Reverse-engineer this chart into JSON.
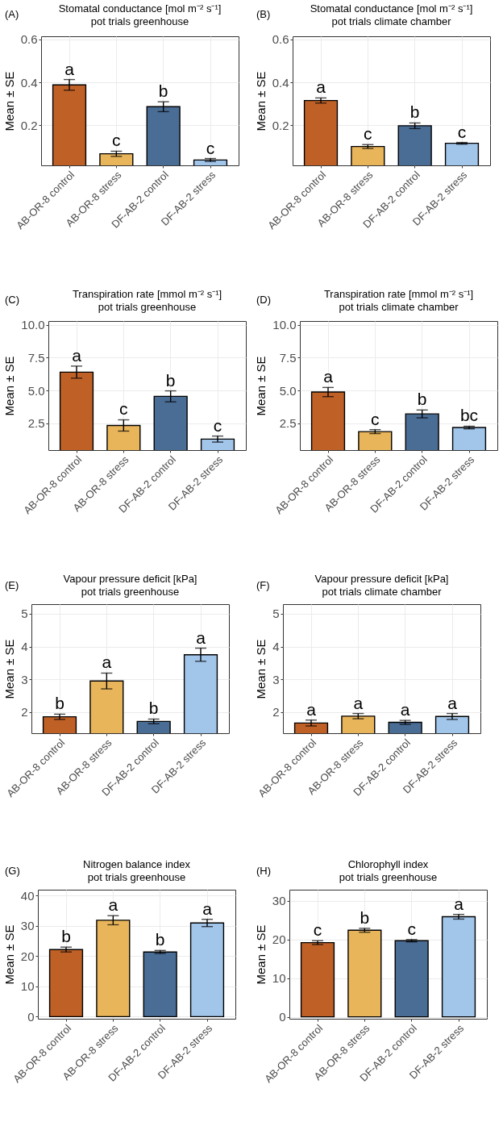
{
  "chart_data": [
    {
      "type": "bar",
      "title": "Stomatal conductance [mol m⁻² s⁻¹]",
      "subtitle": "pot trials greenhouse",
      "ylabel": "Mean ± SE",
      "categories": [
        "AB-OR-8 control",
        "AB-OR-8 stress",
        "DF-AB-2 control",
        "DF-AB-2 stress"
      ],
      "values": [
        0.388,
        0.066,
        0.286,
        0.037
      ],
      "errors": [
        0.025,
        0.012,
        0.023,
        0.007
      ],
      "colors": [
        "#bf6127",
        "#e8b55a",
        "#4a6d95",
        "#a2c5ea"
      ],
      "ylim": [
        0.012,
        0.615
      ],
      "yticks": [
        0.2,
        0.4,
        0.6
      ],
      "grid": true,
      "annotations": [
        "(A)",
        {
          "text": "a",
          "x": "AB-OR-8 control",
          "y": 0.413
        },
        {
          "text": "c",
          "x": "AB-OR-8 stress",
          "y": 0.078
        },
        {
          "text": "b",
          "x": "DF-AB-2 control",
          "y": 0.309
        },
        {
          "text": "c",
          "x": "DF-AB-2 stress",
          "y": 0.044
        }
      ]
    },
    {
      "type": "bar",
      "title": "Stomatal conductance [mol m⁻² s⁻¹]",
      "subtitle": "pot trials climate chamber",
      "ylabel": "Mean ± SE",
      "categories": [
        "AB-OR-8 control",
        "AB-OR-8 stress",
        "DF-AB-2 control",
        "DF-AB-2 stress"
      ],
      "values": [
        0.315,
        0.1,
        0.197,
        0.115
      ],
      "errors": [
        0.012,
        0.009,
        0.013,
        0.004
      ],
      "colors": [
        "#bf6127",
        "#e8b55a",
        "#4a6d95",
        "#a2c5ea"
      ],
      "ylim": [
        0.012,
        0.615
      ],
      "yticks": [
        0.2,
        0.4,
        0.6
      ],
      "grid": true,
      "annotations": [
        "(B)",
        {
          "text": "a",
          "x": "AB-OR-8 control",
          "y": 0.327
        },
        {
          "text": "c",
          "x": "AB-OR-8 stress",
          "y": 0.109
        },
        {
          "text": "b",
          "x": "DF-AB-2 control",
          "y": 0.21
        },
        {
          "text": "c",
          "x": "DF-AB-2 stress",
          "y": 0.119
        }
      ]
    },
    {
      "type": "bar",
      "title": "Transpiration rate [mmol m⁻² s⁻¹]",
      "subtitle": "pot trials greenhouse",
      "ylabel": "Mean ± SE",
      "categories": [
        "AB-OR-8 control",
        "AB-OR-8 stress",
        "DF-AB-2 control",
        "DF-AB-2 stress"
      ],
      "values": [
        6.4,
        2.33,
        4.55,
        1.29
      ],
      "errors": [
        0.46,
        0.43,
        0.42,
        0.23
      ],
      "colors": [
        "#bf6127",
        "#e8b55a",
        "#4a6d95",
        "#a2c5ea"
      ],
      "ylim": [
        0.45,
        10.3
      ],
      "yticks": [
        {
          "value": 2.5,
          "label": "2.5"
        },
        {
          "value": 5,
          "label": "5.0"
        },
        {
          "value": 7.5,
          "label": "7.5"
        },
        {
          "value": 10,
          "label": "10.0"
        }
      ],
      "grid": true,
      "annotations": [
        "(C)",
        {
          "text": "a",
          "x": "AB-OR-8 control",
          "y": 6.86
        },
        {
          "text": "c",
          "x": "AB-OR-8 stress",
          "y": 2.76
        },
        {
          "text": "b",
          "x": "DF-AB-2 control",
          "y": 4.97
        },
        {
          "text": "c",
          "x": "DF-AB-2 stress",
          "y": 1.52
        }
      ]
    },
    {
      "type": "bar",
      "title": "Transpiration rate [mmol m⁻² s⁻¹]",
      "subtitle": "pot trials climate chamber",
      "ylabel": "Mean ± SE",
      "categories": [
        "AB-OR-8 control",
        "AB-OR-8 stress",
        "DF-AB-2 control",
        "DF-AB-2 stress"
      ],
      "values": [
        4.88,
        1.86,
        3.21,
        2.17
      ],
      "errors": [
        0.35,
        0.15,
        0.3,
        0.1
      ],
      "colors": [
        "#bf6127",
        "#e8b55a",
        "#4a6d95",
        "#a2c5ea"
      ],
      "ylim": [
        0.45,
        10.3
      ],
      "yticks": [
        {
          "value": 2.5,
          "label": "2.5"
        },
        {
          "value": 5,
          "label": "5.0"
        },
        {
          "value": 7.5,
          "label": "7.5"
        },
        {
          "value": 10,
          "label": "10.0"
        }
      ],
      "grid": true,
      "annotations": [
        "(D)",
        {
          "text": "a",
          "x": "AB-OR-8 control",
          "y": 5.23
        },
        {
          "text": "c",
          "x": "AB-OR-8 stress",
          "y": 2.01
        },
        {
          "text": "b",
          "x": "DF-AB-2 control",
          "y": 3.51
        },
        {
          "text": "bc",
          "x": "DF-AB-2 stress",
          "y": 2.27
        }
      ]
    },
    {
      "type": "bar",
      "title": "Vapour pressure deficit [kPa]",
      "subtitle": "pot trials greenhouse",
      "ylabel": "Mean ± SE",
      "categories": [
        "AB-OR-8 control",
        "AB-OR-8 stress",
        "DF-AB-2 control",
        "DF-AB-2 stress"
      ],
      "values": [
        1.86,
        2.95,
        1.72,
        3.75
      ],
      "errors": [
        0.08,
        0.24,
        0.07,
        0.2
      ],
      "colors": [
        "#bf6127",
        "#e8b55a",
        "#4a6d95",
        "#a2c5ea"
      ],
      "ylim": [
        1.36,
        5.29
      ],
      "yticks": [
        2,
        3,
        4,
        5
      ],
      "grid": true,
      "annotations": [
        "(E)",
        {
          "text": "b",
          "x": "AB-OR-8 control",
          "y": 1.94
        },
        {
          "text": "a",
          "x": "AB-OR-8 stress",
          "y": 3.19
        },
        {
          "text": "b",
          "x": "DF-AB-2 control",
          "y": 1.79
        },
        {
          "text": "a",
          "x": "DF-AB-2 stress",
          "y": 3.95
        }
      ]
    },
    {
      "type": "bar",
      "title": "Vapour pressure deficit [kPa]",
      "subtitle": "pot trials climate chamber",
      "ylabel": "Mean ± SE",
      "categories": [
        "AB-OR-8 control",
        "AB-OR-8 stress",
        "DF-AB-2 control",
        "DF-AB-2 stress"
      ],
      "values": [
        1.67,
        1.88,
        1.69,
        1.87
      ],
      "errors": [
        0.09,
        0.08,
        0.06,
        0.09
      ],
      "colors": [
        "#bf6127",
        "#e8b55a",
        "#4a6d95",
        "#a2c5ea"
      ],
      "ylim": [
        1.36,
        5.29
      ],
      "yticks": [
        2,
        3,
        4,
        5
      ],
      "grid": true,
      "annotations": [
        "(F)",
        {
          "text": "a",
          "x": "AB-OR-8 control",
          "y": 1.76
        },
        {
          "text": "a",
          "x": "AB-OR-8 stress",
          "y": 1.96
        },
        {
          "text": "a",
          "x": "DF-AB-2 control",
          "y": 1.75
        },
        {
          "text": "a",
          "x": "DF-AB-2 stress",
          "y": 1.96
        }
      ]
    },
    {
      "type": "bar",
      "title": "Nitrogen balance index",
      "subtitle": "pot trials greenhouse",
      "ylabel": "Mean ± SE",
      "categories": [
        "AB-OR-8 control",
        "AB-OR-8 stress",
        "DF-AB-2 control",
        "DF-AB-2 stress"
      ],
      "values": [
        22.2,
        31.9,
        21.4,
        31
      ],
      "errors": [
        0.8,
        1.5,
        0.5,
        1.2
      ],
      "colors": [
        "#bf6127",
        "#e8b55a",
        "#4a6d95",
        "#a2c5ea"
      ],
      "ylim": [
        -0.7,
        42
      ],
      "yticks": [
        0,
        10,
        20,
        30,
        40
      ],
      "grid": true,
      "annotations": [
        "(G)",
        {
          "text": "b",
          "x": "AB-OR-8 control",
          "y": 23
        },
        {
          "text": "a",
          "x": "AB-OR-8 stress",
          "y": 33.4
        },
        {
          "text": "b",
          "x": "DF-AB-2 control",
          "y": 21.9
        },
        {
          "text": "a",
          "x": "DF-AB-2 stress",
          "y": 32.2
        }
      ]
    },
    {
      "type": "bar",
      "title": "Chlorophyll index",
      "subtitle": "pot trials greenhouse",
      "ylabel": "Mean ± SE",
      "categories": [
        "AB-OR-8 control",
        "AB-OR-8 stress",
        "DF-AB-2 control",
        "DF-AB-2 stress"
      ],
      "values": [
        19.2,
        22.4,
        19.7,
        25.9
      ],
      "errors": [
        0.5,
        0.5,
        0.3,
        0.6
      ],
      "colors": [
        "#bf6127",
        "#e8b55a",
        "#4a6d95",
        "#a2c5ea"
      ],
      "ylim": [
        -0.5,
        32.9
      ],
      "yticks": [
        0,
        10,
        20,
        30
      ],
      "grid": true,
      "annotations": [
        "(H)",
        {
          "text": "c",
          "x": "AB-OR-8 control",
          "y": 19.7
        },
        {
          "text": "b",
          "x": "AB-OR-8 stress",
          "y": 22.9
        },
        {
          "text": "c",
          "x": "DF-AB-2 control",
          "y": 20
        },
        {
          "text": "a",
          "x": "DF-AB-2 stress",
          "y": 26.5
        }
      ]
    }
  ]
}
